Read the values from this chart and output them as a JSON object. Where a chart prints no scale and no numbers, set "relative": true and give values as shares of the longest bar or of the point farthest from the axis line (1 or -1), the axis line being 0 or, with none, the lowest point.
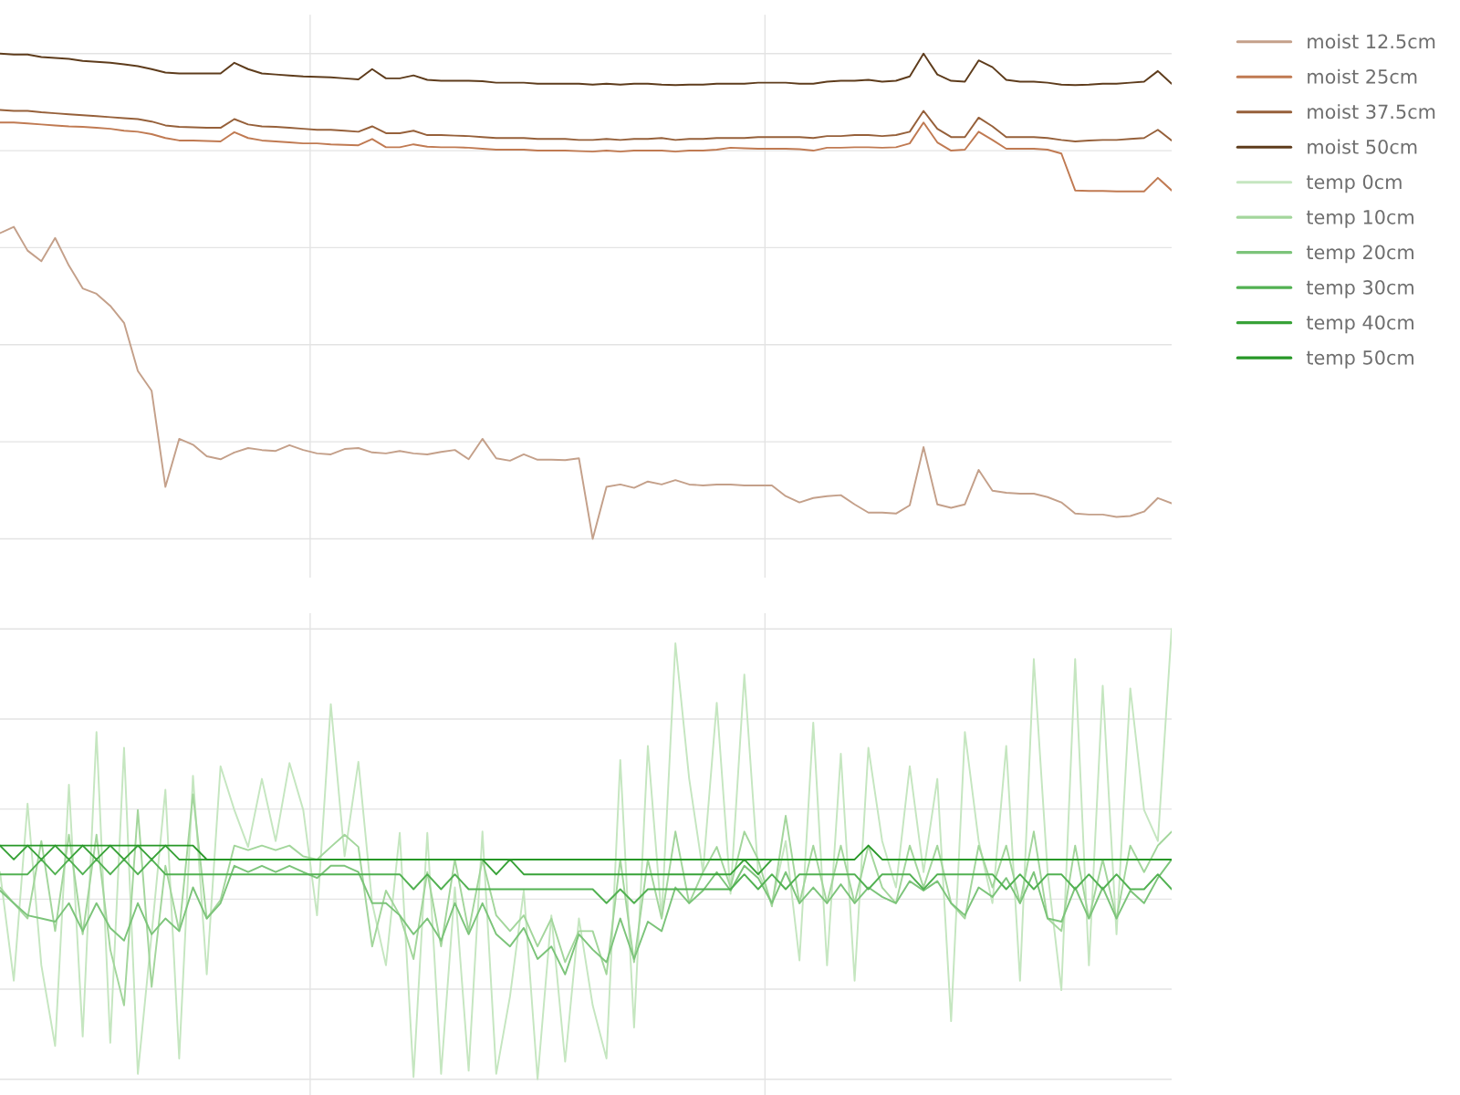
{
  "chart_data": [
    {
      "type": "line",
      "relative": true,
      "grid": true,
      "legend": "top right",
      "categories": [
        null,
        null,
        null,
        null,
        null,
        null,
        null,
        null,
        null,
        null,
        null,
        null,
        null,
        null,
        null,
        null,
        null,
        null,
        null,
        null,
        null,
        null,
        null,
        null,
        null,
        null,
        null,
        null,
        null,
        null,
        null,
        null,
        null,
        null,
        null,
        null,
        null,
        null,
        null,
        null,
        null,
        null,
        null,
        null,
        null,
        null,
        null,
        null,
        null,
        null,
        null,
        null,
        null,
        null,
        null,
        null,
        null,
        null,
        null,
        null,
        null,
        null,
        null,
        null,
        null,
        null,
        null,
        null,
        null,
        null,
        null,
        null,
        null,
        null,
        null,
        null,
        null,
        null,
        null,
        null,
        null,
        null,
        null,
        null,
        null,
        null
      ],
      "series": [
        {
          "name": "moist 12.5cm",
          "color": "#c4a08a",
          "values": [
            0.63,
            0.643,
            0.594,
            0.572,
            0.62,
            0.563,
            0.516,
            0.505,
            0.48,
            0.445,
            0.346,
            0.305,
            0.107,
            0.206,
            0.194,
            0.17,
            0.164,
            0.178,
            0.187,
            0.183,
            0.181,
            0.193,
            0.183,
            0.176,
            0.174,
            0.185,
            0.187,
            0.178,
            0.176,
            0.181,
            0.176,
            0.174,
            0.179,
            0.183,
            0.164,
            0.206,
            0.166,
            0.161,
            0.174,
            0.163,
            0.163,
            0.162,
            0.166,
            0.0,
            0.107,
            0.112,
            0.105,
            0.118,
            0.112,
            0.121,
            0.112,
            0.11,
            0.112,
            0.112,
            0.11,
            0.11,
            0.11,
            0.088,
            0.075,
            0.084,
            0.088,
            0.09,
            0.071,
            0.054,
            0.054,
            0.052,
            0.069,
            0.189,
            0.071,
            0.064,
            0.071,
            0.142,
            0.099,
            0.095,
            0.093,
            0.093,
            0.086,
            0.075,
            0.052,
            0.05,
            0.05,
            0.045,
            0.047,
            0.056,
            0.084,
            0.073
          ]
        },
        {
          "name": "moist 25cm",
          "color": "#c07a52",
          "values": [
            0.858,
            0.858,
            0.856,
            0.854,
            0.852,
            0.85,
            0.849,
            0.847,
            0.845,
            0.841,
            0.839,
            0.834,
            0.826,
            0.821,
            0.821,
            0.82,
            0.819,
            0.838,
            0.826,
            0.821,
            0.819,
            0.817,
            0.815,
            0.815,
            0.813,
            0.812,
            0.811,
            0.824,
            0.807,
            0.807,
            0.813,
            0.808,
            0.807,
            0.807,
            0.806,
            0.804,
            0.802,
            0.802,
            0.802,
            0.8,
            0.8,
            0.8,
            0.799,
            0.798,
            0.8,
            0.798,
            0.8,
            0.8,
            0.8,
            0.798,
            0.8,
            0.8,
            0.802,
            0.806,
            0.805,
            0.804,
            0.804,
            0.804,
            0.803,
            0.8,
            0.806,
            0.806,
            0.807,
            0.807,
            0.806,
            0.807,
            0.815,
            0.858,
            0.817,
            0.8,
            0.802,
            0.839,
            0.822,
            0.804,
            0.804,
            0.804,
            0.802,
            0.794,
            0.718,
            0.717,
            0.717,
            0.716,
            0.716,
            0.716,
            0.744,
            0.718
          ]
        },
        {
          "name": "moist 37.5cm",
          "color": "#96603a",
          "values": [
            0.884,
            0.882,
            0.882,
            0.879,
            0.877,
            0.875,
            0.873,
            0.871,
            0.869,
            0.867,
            0.865,
            0.86,
            0.852,
            0.849,
            0.848,
            0.847,
            0.847,
            0.865,
            0.854,
            0.85,
            0.849,
            0.847,
            0.845,
            0.843,
            0.843,
            0.841,
            0.839,
            0.85,
            0.836,
            0.836,
            0.841,
            0.832,
            0.832,
            0.831,
            0.83,
            0.828,
            0.826,
            0.826,
            0.826,
            0.824,
            0.824,
            0.824,
            0.822,
            0.822,
            0.824,
            0.822,
            0.824,
            0.824,
            0.826,
            0.822,
            0.824,
            0.824,
            0.826,
            0.826,
            0.826,
            0.828,
            0.828,
            0.828,
            0.828,
            0.826,
            0.83,
            0.83,
            0.832,
            0.832,
            0.83,
            0.832,
            0.839,
            0.882,
            0.845,
            0.828,
            0.828,
            0.868,
            0.85,
            0.828,
            0.828,
            0.828,
            0.826,
            0.822,
            0.819,
            0.821,
            0.822,
            0.822,
            0.824,
            0.826,
            0.843,
            0.821
          ]
        },
        {
          "name": "moist 50cm",
          "color": "#5e3c1c",
          "values": [
            1.0,
            0.998,
            0.998,
            0.993,
            0.991,
            0.989,
            0.985,
            0.983,
            0.981,
            0.978,
            0.974,
            0.968,
            0.961,
            0.959,
            0.959,
            0.959,
            0.959,
            0.981,
            0.968,
            0.959,
            0.957,
            0.955,
            0.953,
            0.952,
            0.951,
            0.949,
            0.947,
            0.968,
            0.949,
            0.949,
            0.955,
            0.946,
            0.944,
            0.944,
            0.944,
            0.943,
            0.94,
            0.94,
            0.94,
            0.938,
            0.938,
            0.938,
            0.938,
            0.936,
            0.938,
            0.936,
            0.938,
            0.938,
            0.936,
            0.935,
            0.936,
            0.936,
            0.938,
            0.938,
            0.938,
            0.94,
            0.94,
            0.94,
            0.938,
            0.938,
            0.942,
            0.944,
            0.944,
            0.946,
            0.942,
            0.944,
            0.953,
            1.0,
            0.957,
            0.944,
            0.942,
            0.986,
            0.972,
            0.946,
            0.942,
            0.942,
            0.94,
            0.936,
            0.935,
            0.936,
            0.938,
            0.938,
            0.94,
            0.942,
            0.964,
            0.938
          ]
        }
      ]
    },
    {
      "type": "line",
      "relative": true,
      "grid": true,
      "legend": "top right",
      "categories": [
        null,
        null,
        null,
        null,
        null,
        null,
        null,
        null,
        null,
        null,
        null,
        null,
        null,
        null,
        null,
        null,
        null,
        null,
        null,
        null,
        null,
        null,
        null,
        null,
        null,
        null,
        null,
        null,
        null,
        null,
        null,
        null,
        null,
        null,
        null,
        null,
        null,
        null,
        null,
        null,
        null,
        null,
        null,
        null,
        null,
        null,
        null,
        null,
        null,
        null,
        null,
        null,
        null,
        null,
        null,
        null,
        null,
        null,
        null,
        null,
        null,
        null,
        null,
        null,
        null,
        null,
        null,
        null,
        null,
        null,
        null,
        null,
        null,
        null,
        null,
        null,
        null,
        null,
        null,
        null,
        null,
        null,
        null,
        null,
        null,
        null
      ],
      "series": [
        {
          "name": "temp 0cm",
          "color": "#c5e6c0",
          "values": [
            0.46,
            0.219,
            0.612,
            0.253,
            0.074,
            0.654,
            0.095,
            0.771,
            0.081,
            0.736,
            0.012,
            0.322,
            0.643,
            0.046,
            0.674,
            0.233,
            0.695,
            0.598,
            0.516,
            0.667,
            0.529,
            0.702,
            0.598,
            0.364,
            0.833,
            0.495,
            0.705,
            0.391,
            0.253,
            0.547,
            0.005,
            0.547,
            0.012,
            0.426,
            0.019,
            0.55,
            0.012,
            0.184,
            0.419,
            0.0,
            0.364,
            0.039,
            0.357,
            0.164,
            0.046,
            0.709,
            0.115,
            0.74,
            0.357,
            0.968,
            0.667,
            0.46,
            0.836,
            0.412,
            0.899,
            0.46,
            0.391,
            0.529,
            0.264,
            0.792,
            0.253,
            0.723,
            0.219,
            0.736,
            0.529,
            0.426,
            0.695,
            0.46,
            0.667,
            0.129,
            0.771,
            0.529,
            0.391,
            0.74,
            0.219,
            0.933,
            0.46,
            0.198,
            0.933,
            0.253,
            0.874,
            0.322,
            0.868,
            0.598,
            0.529,
            1.0
          ]
        },
        {
          "name": "temp 10cm",
          "color": "#a3d69c",
          "values": [
            0.426,
            0.391,
            0.357,
            0.529,
            0.329,
            0.543,
            0.322,
            0.543,
            0.288,
            0.164,
            0.598,
            0.205,
            0.474,
            0.329,
            0.633,
            0.357,
            0.398,
            0.519,
            0.509,
            0.519,
            0.509,
            0.519,
            0.495,
            0.488,
            0.516,
            0.543,
            0.516,
            0.295,
            0.419,
            0.364,
            0.267,
            0.46,
            0.295,
            0.488,
            0.329,
            0.488,
            0.364,
            0.329,
            0.364,
            0.295,
            0.357,
            0.26,
            0.329,
            0.329,
            0.233,
            0.488,
            0.26,
            0.488,
            0.357,
            0.55,
            0.391,
            0.46,
            0.516,
            0.426,
            0.55,
            0.488,
            0.384,
            0.585,
            0.391,
            0.519,
            0.391,
            0.519,
            0.391,
            0.519,
            0.426,
            0.391,
            0.519,
            0.426,
            0.519,
            0.391,
            0.357,
            0.519,
            0.426,
            0.519,
            0.391,
            0.55,
            0.357,
            0.329,
            0.519,
            0.357,
            0.488,
            0.357,
            0.519,
            0.46,
            0.519,
            0.55
          ]
        },
        {
          "name": "temp 20cm",
          "color": "#7cc47a",
          "values": [
            0.419,
            0.391,
            0.364,
            0.357,
            0.35,
            0.391,
            0.329,
            0.391,
            0.336,
            0.308,
            0.391,
            0.322,
            0.357,
            0.329,
            0.426,
            0.357,
            0.391,
            0.474,
            0.46,
            0.474,
            0.46,
            0.474,
            0.46,
            0.447,
            0.474,
            0.474,
            0.46,
            0.391,
            0.391,
            0.364,
            0.322,
            0.357,
            0.308,
            0.391,
            0.322,
            0.391,
            0.322,
            0.295,
            0.336,
            0.267,
            0.295,
            0.233,
            0.322,
            0.288,
            0.26,
            0.357,
            0.267,
            0.35,
            0.329,
            0.426,
            0.391,
            0.419,
            0.46,
            0.419,
            0.474,
            0.447,
            0.391,
            0.46,
            0.391,
            0.426,
            0.391,
            0.433,
            0.391,
            0.426,
            0.405,
            0.391,
            0.44,
            0.419,
            0.44,
            0.391,
            0.364,
            0.426,
            0.405,
            0.447,
            0.391,
            0.46,
            0.357,
            0.35,
            0.426,
            0.357,
            0.426,
            0.357,
            0.419,
            0.391,
            0.447,
            0.488
          ]
        },
        {
          "name": "temp 30cm",
          "color": "#52b152",
          "values": [
            0.455,
            0.455,
            0.455,
            0.488,
            0.455,
            0.488,
            0.455,
            0.488,
            0.455,
            0.488,
            0.455,
            0.488,
            0.455,
            0.455,
            0.455,
            0.455,
            0.455,
            0.455,
            0.455,
            0.455,
            0.455,
            0.455,
            0.455,
            0.455,
            0.455,
            0.455,
            0.455,
            0.455,
            0.455,
            0.455,
            0.422,
            0.455,
            0.422,
            0.455,
            0.422,
            0.422,
            0.422,
            0.422,
            0.422,
            0.422,
            0.422,
            0.422,
            0.422,
            0.422,
            0.391,
            0.422,
            0.391,
            0.422,
            0.422,
            0.422,
            0.422,
            0.422,
            0.422,
            0.422,
            0.455,
            0.422,
            0.455,
            0.422,
            0.455,
            0.455,
            0.455,
            0.455,
            0.455,
            0.422,
            0.455,
            0.455,
            0.455,
            0.422,
            0.455,
            0.455,
            0.455,
            0.455,
            0.455,
            0.422,
            0.455,
            0.422,
            0.455,
            0.455,
            0.422,
            0.455,
            0.422,
            0.455,
            0.422,
            0.422,
            0.455,
            0.422
          ]
        },
        {
          "name": "temp 40cm",
          "color": "#38a238",
          "values": [
            0.519,
            0.488,
            0.519,
            0.488,
            0.519,
            0.488,
            0.519,
            0.488,
            0.519,
            0.488,
            0.519,
            0.488,
            0.519,
            0.488,
            0.488,
            0.488,
            null,
            null,
            null,
            null,
            null,
            null,
            null,
            null,
            null,
            null,
            null,
            null,
            null,
            null,
            null,
            null,
            null,
            null,
            null,
            0.488,
            0.455,
            0.488,
            0.455,
            0.455,
            0.455,
            0.455,
            0.455,
            0.455,
            0.455,
            0.455,
            0.455,
            0.455,
            0.455,
            0.455,
            0.455,
            0.455,
            0.455,
            0.455,
            0.488,
            0.455,
            0.488,
            null,
            null,
            null,
            null,
            null,
            null,
            null,
            null,
            null,
            null,
            null,
            null,
            null,
            null,
            null,
            null,
            null,
            null,
            null,
            null,
            null,
            null,
            null,
            null,
            null,
            null,
            null,
            null,
            null
          ]
        },
        {
          "name": "temp 50cm",
          "color": "#279727",
          "values": [
            0.519,
            0.519,
            0.519,
            0.519,
            0.519,
            0.519,
            0.519,
            0.519,
            0.519,
            0.519,
            0.519,
            0.519,
            0.519,
            0.519,
            0.519,
            0.488,
            0.488,
            0.488,
            0.488,
            0.488,
            0.488,
            0.488,
            0.488,
            0.488,
            0.488,
            0.488,
            0.488,
            0.488,
            0.488,
            0.488,
            0.488,
            0.488,
            0.488,
            0.488,
            0.488,
            0.488,
            0.488,
            0.488,
            0.488,
            0.488,
            0.488,
            0.488,
            0.488,
            0.488,
            0.488,
            0.488,
            0.488,
            0.488,
            0.488,
            0.488,
            0.488,
            0.488,
            0.488,
            0.488,
            0.488,
            0.488,
            0.488,
            0.488,
            0.488,
            0.488,
            0.488,
            0.488,
            0.488,
            0.519,
            0.488,
            0.488,
            0.488,
            0.488,
            0.488,
            0.488,
            0.488,
            0.488,
            0.488,
            0.488,
            0.488,
            0.488,
            0.488,
            0.488,
            0.488,
            0.488,
            0.488,
            0.488,
            0.488,
            0.488,
            0.488,
            0.488
          ]
        }
      ]
    }
  ]
}
